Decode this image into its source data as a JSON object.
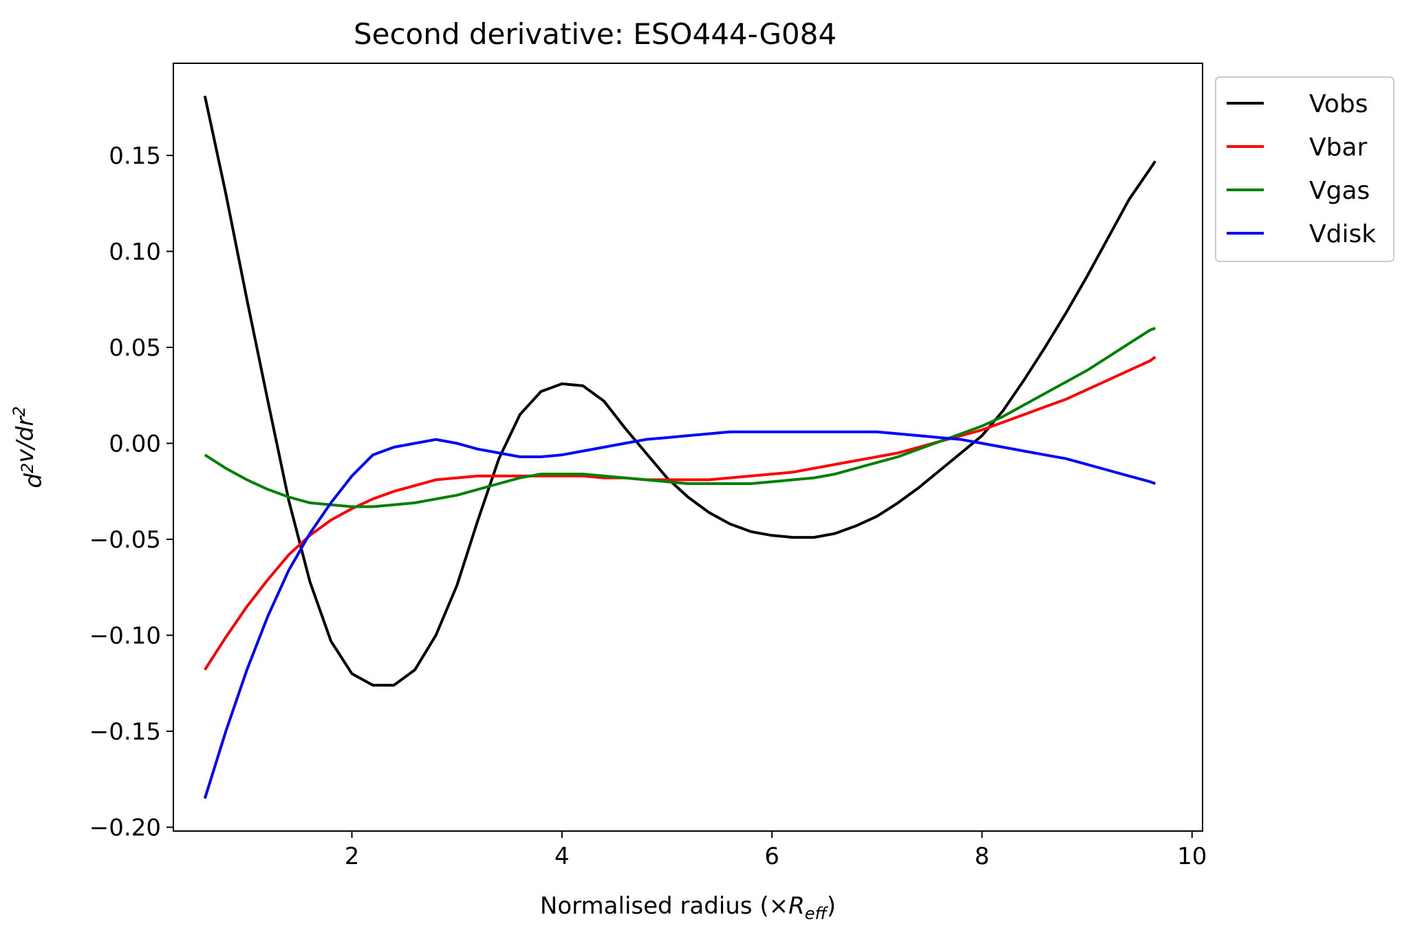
{
  "chart_data": {
    "type": "line",
    "title": "Second derivative: ESO444-G084",
    "xlabel_main": "Normalised radius (×",
    "xlabel_sym": "R",
    "xlabel_sub": "eff",
    "xlabel_end": ")",
    "ylabel": "d²v/dr²",
    "xlim": [
      0.3,
      10.1
    ],
    "ylim": [
      -0.202,
      0.198
    ],
    "xticks": [
      2,
      4,
      6,
      8,
      10
    ],
    "xtick_labels": [
      "2",
      "4",
      "6",
      "8",
      "10"
    ],
    "yticks": [
      -0.2,
      -0.15,
      -0.1,
      -0.05,
      0.0,
      0.05,
      0.1,
      0.15
    ],
    "ytick_labels": [
      "−0.20",
      "−0.15",
      "−0.10",
      "−0.05",
      "0.00",
      "0.05",
      "0.10",
      "0.15"
    ],
    "grid": false,
    "legend_position": "outside-top-right",
    "x": [
      0.6,
      0.8,
      1.0,
      1.2,
      1.4,
      1.6,
      1.8,
      2.0,
      2.2,
      2.4,
      2.6,
      2.8,
      3.0,
      3.2,
      3.4,
      3.6,
      3.8,
      4.0,
      4.2,
      4.4,
      4.6,
      4.8,
      5.0,
      5.2,
      5.4,
      5.6,
      5.8,
      6.0,
      6.2,
      6.4,
      6.6,
      6.8,
      7.0,
      7.2,
      7.4,
      7.6,
      7.8,
      8.0,
      8.2,
      8.4,
      8.6,
      8.8,
      9.0,
      9.2,
      9.4,
      9.6,
      9.65
    ],
    "series": [
      {
        "name": "Vobs",
        "color": "#000000",
        "values": [
          0.181,
          0.13,
          0.075,
          0.022,
          -0.03,
          -0.072,
          -0.103,
          -0.12,
          -0.126,
          -0.126,
          -0.118,
          -0.1,
          -0.074,
          -0.04,
          -0.008,
          0.015,
          0.027,
          0.031,
          0.03,
          0.022,
          0.008,
          -0.005,
          -0.018,
          -0.028,
          -0.036,
          -0.042,
          -0.046,
          -0.048,
          -0.049,
          -0.049,
          -0.047,
          -0.043,
          -0.038,
          -0.031,
          -0.023,
          -0.014,
          -0.005,
          0.004,
          0.017,
          0.033,
          0.05,
          0.068,
          0.087,
          0.107,
          0.127,
          0.143,
          0.147
        ]
      },
      {
        "name": "Vbar",
        "color": "#ff0000",
        "values": [
          -0.118,
          -0.101,
          -0.085,
          -0.071,
          -0.058,
          -0.048,
          -0.04,
          -0.034,
          -0.029,
          -0.025,
          -0.022,
          -0.019,
          -0.018,
          -0.017,
          -0.017,
          -0.017,
          -0.017,
          -0.017,
          -0.017,
          -0.018,
          -0.018,
          -0.019,
          -0.019,
          -0.019,
          -0.019,
          -0.018,
          -0.017,
          -0.016,
          -0.015,
          -0.013,
          -0.011,
          -0.009,
          -0.007,
          -0.005,
          -0.002,
          0.001,
          0.004,
          0.007,
          0.011,
          0.015,
          0.019,
          0.023,
          0.028,
          0.033,
          0.038,
          0.043,
          0.045
        ]
      },
      {
        "name": "Vgas",
        "color": "#008000",
        "values": [
          -0.006,
          -0.013,
          -0.019,
          -0.024,
          -0.028,
          -0.031,
          -0.032,
          -0.033,
          -0.033,
          -0.032,
          -0.031,
          -0.029,
          -0.027,
          -0.024,
          -0.021,
          -0.018,
          -0.016,
          -0.016,
          -0.016,
          -0.017,
          -0.018,
          -0.019,
          -0.02,
          -0.021,
          -0.021,
          -0.021,
          -0.021,
          -0.02,
          -0.019,
          -0.018,
          -0.016,
          -0.013,
          -0.01,
          -0.007,
          -0.003,
          0.001,
          0.005,
          0.009,
          0.014,
          0.02,
          0.026,
          0.032,
          0.038,
          0.045,
          0.052,
          0.059,
          0.06
        ]
      },
      {
        "name": "Vdisk",
        "color": "#0000ff",
        "values": [
          -0.185,
          -0.15,
          -0.118,
          -0.09,
          -0.066,
          -0.047,
          -0.031,
          -0.017,
          -0.006,
          -0.002,
          0.0,
          0.002,
          0.0,
          -0.003,
          -0.005,
          -0.007,
          -0.007,
          -0.006,
          -0.004,
          -0.002,
          0.0,
          0.002,
          0.003,
          0.004,
          0.005,
          0.006,
          0.006,
          0.006,
          0.006,
          0.006,
          0.006,
          0.006,
          0.006,
          0.005,
          0.004,
          0.003,
          0.002,
          0.0,
          -0.002,
          -0.004,
          -0.006,
          -0.008,
          -0.011,
          -0.014,
          -0.017,
          -0.02,
          -0.021
        ]
      }
    ]
  }
}
